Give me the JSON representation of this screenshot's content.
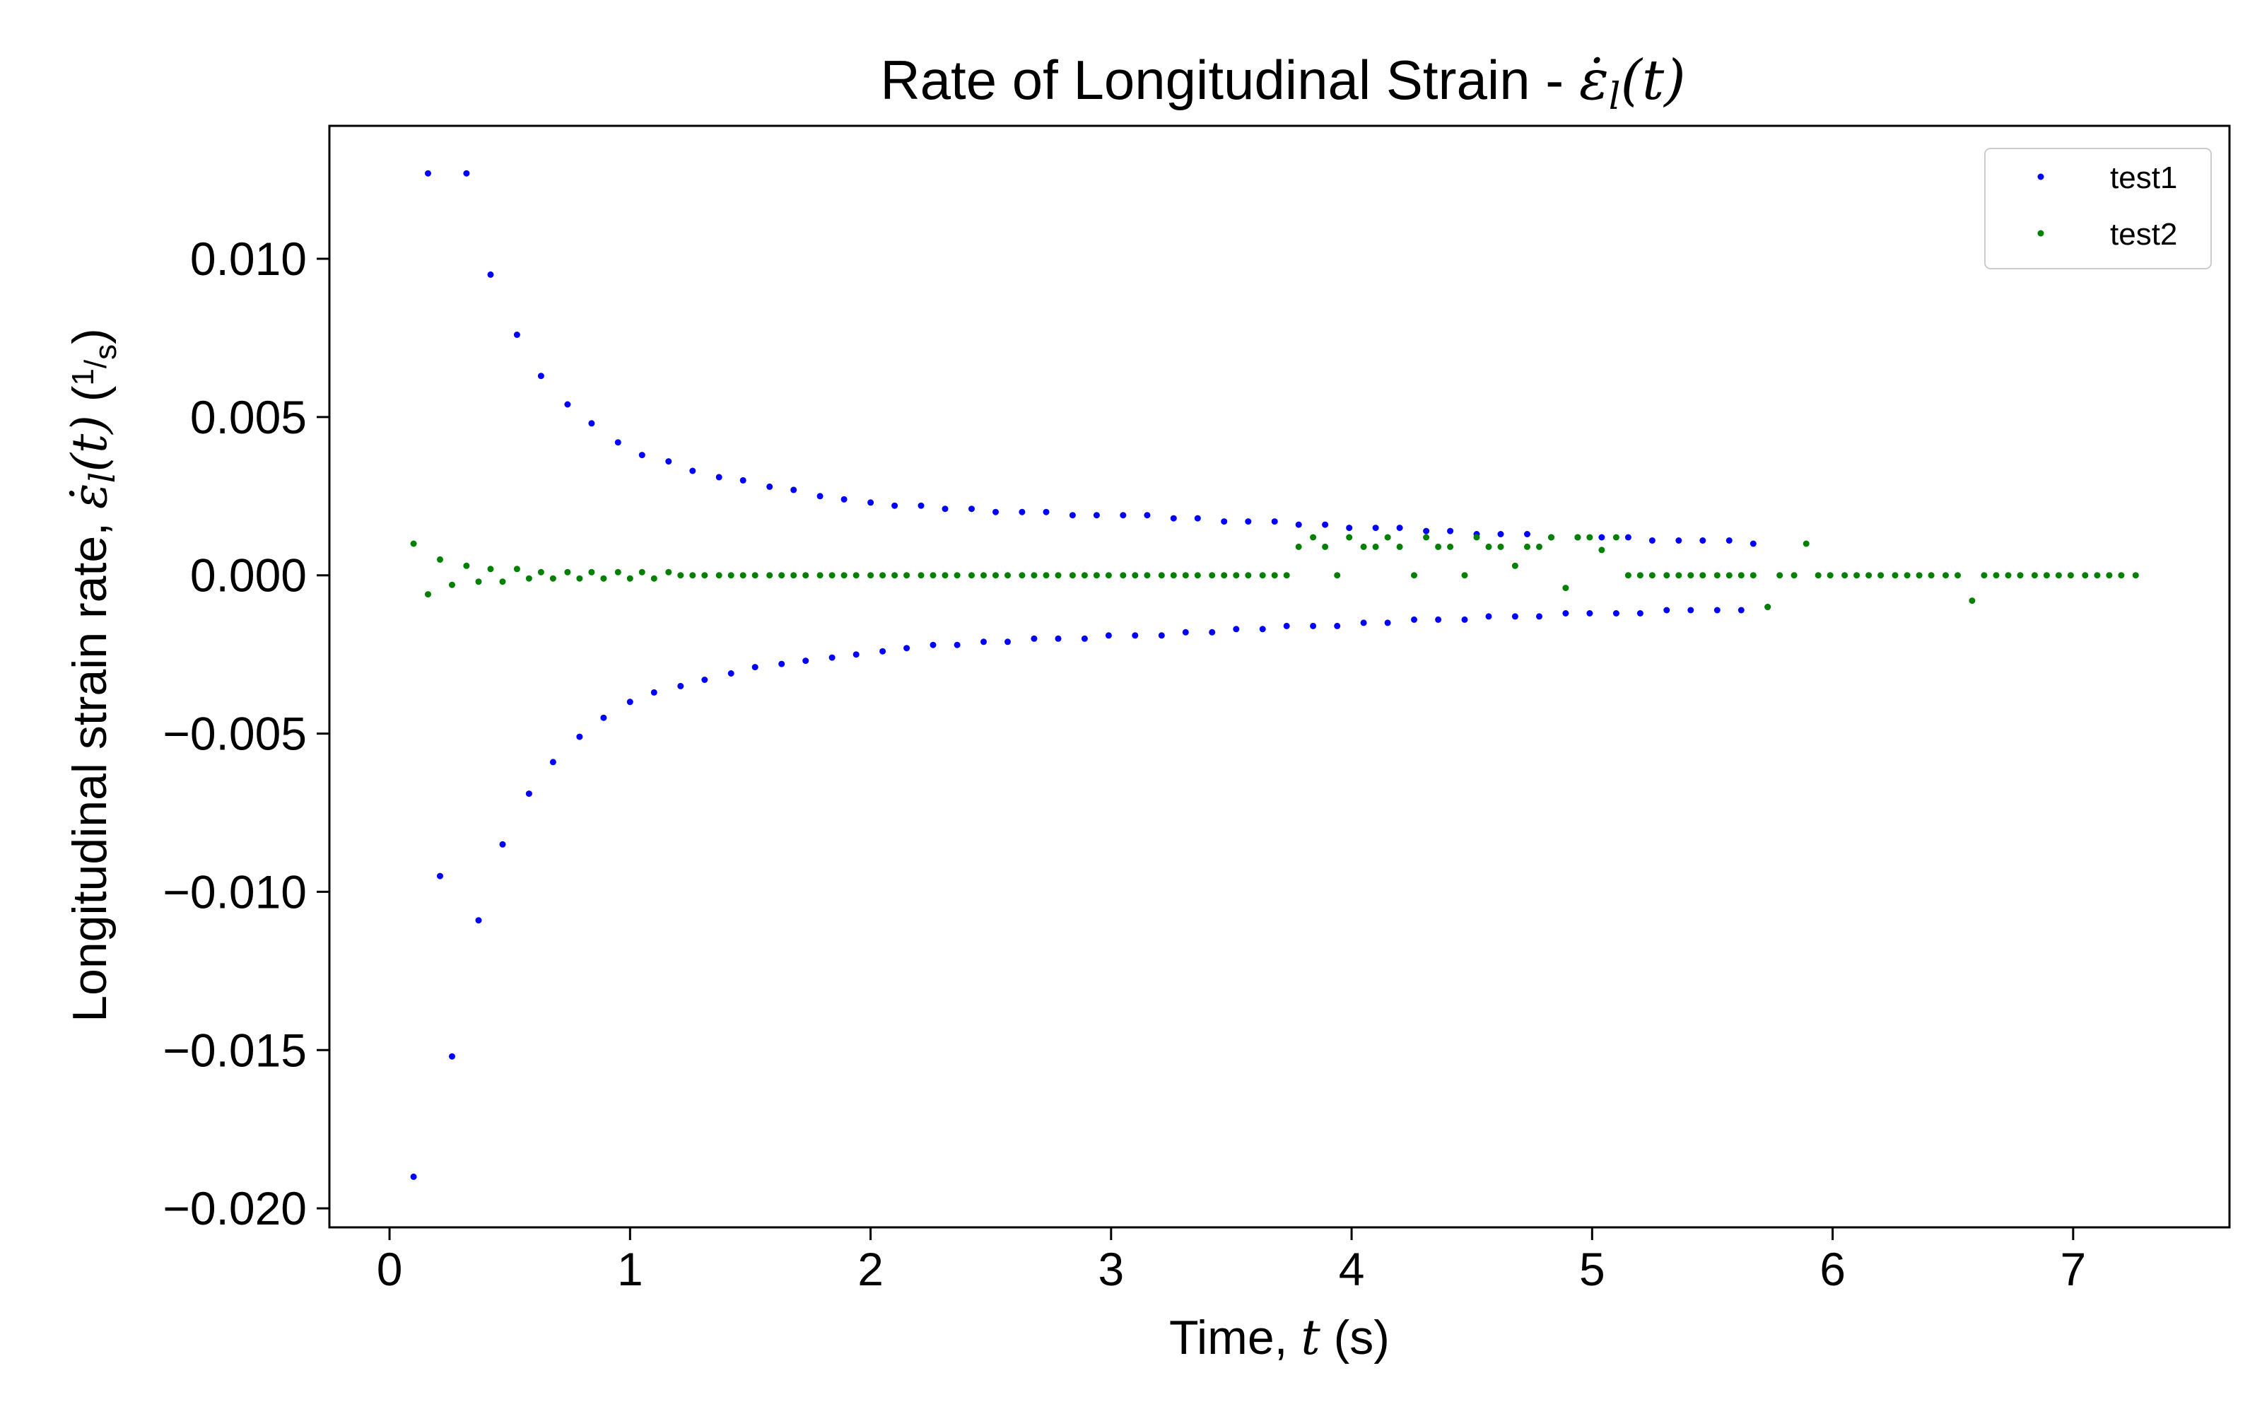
{
  "chart_data": {
    "type": "scatter",
    "title": "Rate of Longitudinal Strain - ε̇l(t)",
    "xlabel": "Time, t (s)",
    "ylabel": "Longitudinal strain rate, ε̇l(t) (1/s)",
    "xlim": [
      -0.25,
      7.65
    ],
    "ylim": [
      -0.0206,
      0.0142
    ],
    "xticks": [
      0,
      1,
      2,
      3,
      4,
      5,
      6,
      7
    ],
    "yticks": [
      0.01,
      0.005,
      0.0,
      -0.005,
      -0.01,
      -0.015,
      -0.02
    ],
    "ytick_labels": [
      "0.010",
      "0.005",
      "0.000",
      "−0.005",
      "−0.010",
      "−0.015",
      "−0.020"
    ],
    "grid": false,
    "legend_position": "top-right",
    "series": [
      {
        "name": "test1",
        "color": "#0000ff",
        "points": [
          [
            0.1,
            -0.019
          ],
          [
            0.16,
            0.0127
          ],
          [
            0.21,
            -0.0095
          ],
          [
            0.26,
            -0.0152
          ],
          [
            0.32,
            0.0127
          ],
          [
            0.37,
            -0.0109
          ],
          [
            0.42,
            0.0095
          ],
          [
            0.47,
            -0.0085
          ],
          [
            0.53,
            0.0076
          ],
          [
            0.58,
            -0.0069
          ],
          [
            0.63,
            0.0063
          ],
          [
            0.68,
            -0.0059
          ],
          [
            0.74,
            0.0054
          ],
          [
            0.79,
            -0.0051
          ],
          [
            0.84,
            0.0048
          ],
          [
            0.89,
            -0.0045
          ],
          [
            0.95,
            0.0042
          ],
          [
            1.0,
            -0.004
          ],
          [
            1.05,
            0.0038
          ],
          [
            1.1,
            -0.0037
          ],
          [
            1.16,
            0.0036
          ],
          [
            1.21,
            -0.0035
          ],
          [
            1.26,
            0.0033
          ],
          [
            1.31,
            -0.0033
          ],
          [
            1.37,
            0.0031
          ],
          [
            1.42,
            -0.0031
          ],
          [
            1.47,
            0.003
          ],
          [
            1.52,
            -0.0029
          ],
          [
            1.58,
            0.0028
          ],
          [
            1.63,
            -0.0028
          ],
          [
            1.68,
            0.0027
          ],
          [
            1.73,
            -0.0027
          ],
          [
            1.79,
            0.0025
          ],
          [
            1.84,
            -0.0026
          ],
          [
            1.89,
            0.0024
          ],
          [
            1.94,
            -0.0025
          ],
          [
            2.0,
            0.0023
          ],
          [
            2.05,
            -0.0024
          ],
          [
            2.1,
            0.0022
          ],
          [
            2.15,
            -0.0023
          ],
          [
            2.21,
            0.0022
          ],
          [
            2.26,
            -0.0022
          ],
          [
            2.31,
            0.0021
          ],
          [
            2.36,
            -0.0022
          ],
          [
            2.42,
            0.0021
          ],
          [
            2.47,
            -0.0021
          ],
          [
            2.52,
            0.002
          ],
          [
            2.57,
            -0.0021
          ],
          [
            2.63,
            0.002
          ],
          [
            2.68,
            -0.002
          ],
          [
            2.73,
            0.002
          ],
          [
            2.78,
            -0.002
          ],
          [
            2.84,
            0.0019
          ],
          [
            2.89,
            -0.002
          ],
          [
            2.94,
            0.0019
          ],
          [
            2.99,
            -0.0019
          ],
          [
            3.05,
            0.0019
          ],
          [
            3.1,
            -0.0019
          ],
          [
            3.15,
            0.0019
          ],
          [
            3.21,
            -0.0019
          ],
          [
            3.26,
            0.0018
          ],
          [
            3.31,
            -0.0018
          ],
          [
            3.36,
            0.0018
          ],
          [
            3.42,
            -0.0018
          ],
          [
            3.47,
            0.0017
          ],
          [
            3.52,
            -0.0017
          ],
          [
            3.57,
            0.0017
          ],
          [
            3.63,
            -0.0017
          ],
          [
            3.68,
            0.0017
          ],
          [
            3.73,
            -0.0016
          ],
          [
            3.78,
            0.0016
          ],
          [
            3.84,
            -0.0016
          ],
          [
            3.89,
            0.0016
          ],
          [
            3.94,
            -0.0016
          ],
          [
            3.99,
            0.0015
          ],
          [
            4.05,
            -0.0015
          ],
          [
            4.1,
            0.0015
          ],
          [
            4.15,
            -0.0015
          ],
          [
            4.2,
            0.0015
          ],
          [
            4.26,
            -0.0014
          ],
          [
            4.31,
            0.0014
          ],
          [
            4.36,
            -0.0014
          ],
          [
            4.41,
            0.0014
          ],
          [
            4.47,
            -0.0014
          ],
          [
            4.52,
            0.0013
          ],
          [
            4.57,
            -0.0013
          ],
          [
            4.62,
            0.0013
          ],
          [
            4.68,
            -0.0013
          ],
          [
            4.73,
            0.0013
          ],
          [
            4.78,
            -0.0013
          ],
          [
            4.83,
            0.0012
          ],
          [
            4.89,
            -0.0012
          ],
          [
            4.94,
            0.0012
          ],
          [
            4.99,
            -0.0012
          ],
          [
            5.04,
            0.0012
          ],
          [
            5.1,
            -0.0012
          ],
          [
            5.15,
            0.0012
          ],
          [
            5.2,
            -0.0012
          ],
          [
            5.25,
            0.0011
          ],
          [
            5.31,
            -0.0011
          ],
          [
            5.36,
            0.0011
          ],
          [
            5.41,
            -0.0011
          ],
          [
            5.46,
            0.0011
          ],
          [
            5.52,
            -0.0011
          ],
          [
            5.57,
            0.0011
          ],
          [
            5.62,
            -0.0011
          ],
          [
            5.67,
            0.001
          ],
          [
            5.73,
            -0.001
          ]
        ]
      },
      {
        "name": "test2",
        "color": "#008000",
        "points": [
          [
            0.1,
            0.001
          ],
          [
            0.16,
            -0.0006
          ],
          [
            0.21,
            0.0005
          ],
          [
            0.26,
            -0.0003
          ],
          [
            0.32,
            0.0003
          ],
          [
            0.37,
            -0.0002
          ],
          [
            0.42,
            0.0002
          ],
          [
            0.47,
            -0.0002
          ],
          [
            0.53,
            0.0002
          ],
          [
            0.58,
            -0.0001
          ],
          [
            0.63,
            0.0001
          ],
          [
            0.68,
            -0.0001
          ],
          [
            0.74,
            0.0001
          ],
          [
            0.79,
            -0.0001
          ],
          [
            0.84,
            0.0001
          ],
          [
            0.89,
            -0.0001
          ],
          [
            0.95,
            0.0001
          ],
          [
            1.0,
            -0.0001
          ],
          [
            1.05,
            0.0001
          ],
          [
            1.1,
            -0.0001
          ],
          [
            1.16,
            0.0001
          ],
          [
            1.21,
            -0.0
          ],
          [
            1.26,
            0.0
          ],
          [
            1.31,
            -0.0
          ],
          [
            1.37,
            0.0
          ],
          [
            1.42,
            -0.0
          ],
          [
            1.47,
            0.0
          ],
          [
            1.52,
            -0.0
          ],
          [
            1.58,
            0.0
          ],
          [
            1.63,
            0.0
          ],
          [
            1.68,
            0.0
          ],
          [
            1.73,
            0.0
          ],
          [
            1.79,
            0.0
          ],
          [
            1.84,
            0.0
          ],
          [
            1.89,
            0.0
          ],
          [
            1.94,
            0.0
          ],
          [
            2.0,
            0.0
          ],
          [
            2.05,
            0.0
          ],
          [
            2.1,
            0.0
          ],
          [
            2.15,
            0.0
          ],
          [
            2.21,
            0.0
          ],
          [
            2.26,
            0.0
          ],
          [
            2.31,
            0.0
          ],
          [
            2.36,
            0.0
          ],
          [
            2.42,
            0.0
          ],
          [
            2.47,
            0.0
          ],
          [
            2.52,
            0.0
          ],
          [
            2.57,
            0.0
          ],
          [
            2.63,
            0.0
          ],
          [
            2.68,
            0.0
          ],
          [
            2.73,
            0.0
          ],
          [
            2.78,
            0.0
          ],
          [
            2.84,
            0.0
          ],
          [
            2.89,
            0.0
          ],
          [
            2.94,
            0.0
          ],
          [
            2.99,
            0.0
          ],
          [
            3.05,
            0.0
          ],
          [
            3.1,
            0.0
          ],
          [
            3.15,
            0.0
          ],
          [
            3.21,
            0.0
          ],
          [
            3.26,
            0.0
          ],
          [
            3.31,
            0.0
          ],
          [
            3.36,
            0.0
          ],
          [
            3.42,
            0.0
          ],
          [
            3.47,
            0.0
          ],
          [
            3.52,
            0.0
          ],
          [
            3.57,
            0.0
          ],
          [
            3.63,
            0.0
          ],
          [
            3.68,
            0.0
          ],
          [
            3.73,
            0.0
          ],
          [
            3.78,
            0.0009
          ],
          [
            3.84,
            0.0012
          ],
          [
            3.89,
            0.0009
          ],
          [
            3.94,
            0.0
          ],
          [
            3.99,
            0.0012
          ],
          [
            4.05,
            0.0009
          ],
          [
            4.1,
            0.0009
          ],
          [
            4.15,
            0.0012
          ],
          [
            4.2,
            0.0009
          ],
          [
            4.26,
            0.0
          ],
          [
            4.31,
            0.0012
          ],
          [
            4.36,
            0.0009
          ],
          [
            4.41,
            0.0009
          ],
          [
            4.47,
            0.0
          ],
          [
            4.52,
            0.0012
          ],
          [
            4.57,
            0.0009
          ],
          [
            4.62,
            0.0009
          ],
          [
            4.68,
            0.0003
          ],
          [
            4.73,
            0.0009
          ],
          [
            4.78,
            0.0009
          ],
          [
            4.83,
            0.0012
          ],
          [
            4.89,
            -0.0004
          ],
          [
            4.94,
            0.0012
          ],
          [
            4.99,
            0.0012
          ],
          [
            5.04,
            0.0008
          ],
          [
            5.1,
            0.0012
          ],
          [
            5.15,
            0.0
          ],
          [
            5.2,
            0.0
          ],
          [
            5.25,
            0.0
          ],
          [
            5.31,
            0.0
          ],
          [
            5.36,
            0.0
          ],
          [
            5.41,
            0.0
          ],
          [
            5.46,
            0.0
          ],
          [
            5.52,
            0.0
          ],
          [
            5.57,
            0.0
          ],
          [
            5.62,
            0.0
          ],
          [
            5.67,
            0.0
          ],
          [
            5.73,
            -0.001
          ],
          [
            5.78,
            0.0
          ],
          [
            5.84,
            0.0
          ],
          [
            5.89,
            0.001
          ],
          [
            5.94,
            0.0
          ],
          [
            5.99,
            0.0
          ],
          [
            6.05,
            0.0
          ],
          [
            6.1,
            0.0
          ],
          [
            6.15,
            0.0
          ],
          [
            6.2,
            0.0
          ],
          [
            6.26,
            0.0
          ],
          [
            6.31,
            0.0
          ],
          [
            6.36,
            0.0
          ],
          [
            6.41,
            0.0
          ],
          [
            6.47,
            0.0
          ],
          [
            6.52,
            0.0
          ],
          [
            6.58,
            -0.0008
          ],
          [
            6.63,
            0.0
          ],
          [
            6.68,
            0.0
          ],
          [
            6.73,
            0.0
          ],
          [
            6.78,
            0.0
          ],
          [
            6.84,
            0.0
          ],
          [
            6.89,
            0.0
          ],
          [
            6.94,
            0.0
          ],
          [
            6.99,
            0.0
          ],
          [
            7.05,
            0.0
          ],
          [
            7.1,
            0.0
          ],
          [
            7.15,
            0.0
          ],
          [
            7.2,
            0.0
          ],
          [
            7.26,
            0.0
          ]
        ]
      }
    ]
  }
}
